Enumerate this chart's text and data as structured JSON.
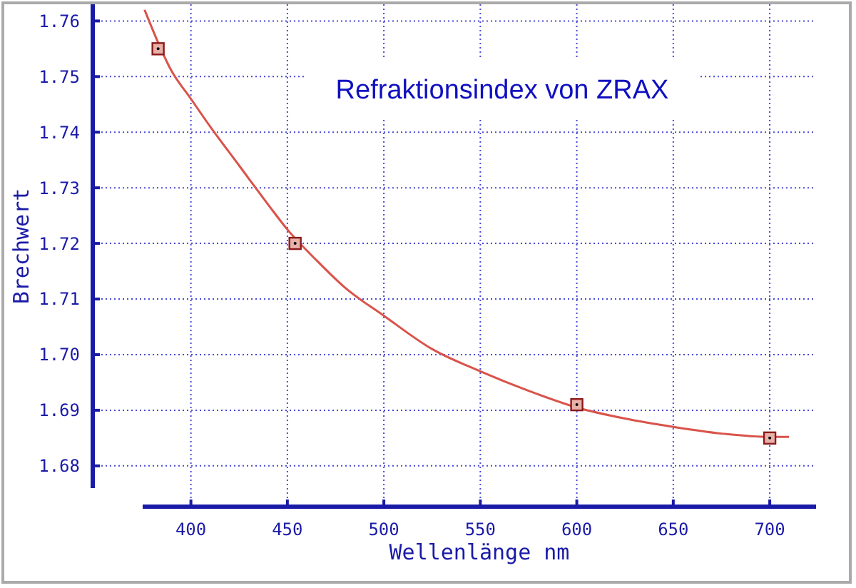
{
  "chart_data": {
    "type": "scatter",
    "title": "Refraktionsindex von ZRAX",
    "xlabel": "Wellenlänge nm",
    "ylabel": "Brechwert",
    "xlim": [
      375,
      724
    ],
    "ylim": [
      1.676,
      1.763
    ],
    "xticks": [
      400,
      450,
      500,
      550,
      600,
      650,
      700
    ],
    "yticks": [
      {
        "value": 1.68,
        "label": "1.68"
      },
      {
        "value": 1.69,
        "label": "1.69"
      },
      {
        "value": 1.7,
        "label": "1.70"
      },
      {
        "value": 1.71,
        "label": "1.71"
      },
      {
        "value": 1.72,
        "label": "1.72"
      },
      {
        "value": 1.73,
        "label": "1.73"
      },
      {
        "value": 1.74,
        "label": "1.74"
      },
      {
        "value": 1.75,
        "label": "1.75"
      },
      {
        "value": 1.76,
        "label": "1.76"
      }
    ],
    "grid": true,
    "marker": "square",
    "series": [
      {
        "type": "line",
        "color": "#d9534a",
        "marker": "none",
        "x": [
          376,
          390,
          400,
          410,
          425,
          440,
          450,
          465,
          480,
          500,
          525,
          550,
          575,
          600,
          625,
          650,
          675,
          700,
          710
        ],
        "values": [
          1.762,
          1.751,
          1.746,
          1.741,
          1.734,
          1.727,
          1.7225,
          1.717,
          1.712,
          1.707,
          1.701,
          1.697,
          1.6935,
          1.6905,
          1.6885,
          1.687,
          1.6858,
          1.6852,
          1.6852
        ]
      },
      {
        "color": "#8b1a1a",
        "x": [
          383,
          454,
          600,
          700
        ],
        "values": [
          1.755,
          1.72,
          1.691,
          1.685
        ]
      }
    ]
  }
}
